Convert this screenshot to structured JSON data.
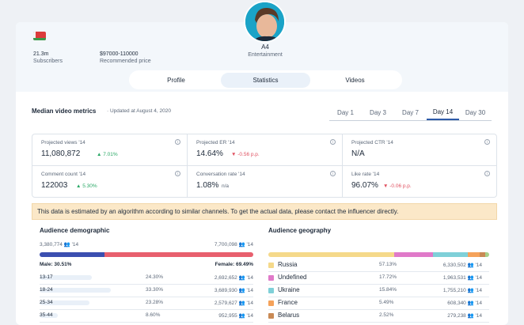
{
  "profile": {
    "subscribers_value": "21.3m",
    "subscribers_label": "Subscribers",
    "price_value": "$97000-110000",
    "price_label": "Recommended price",
    "name": "A4",
    "category": "Entertainment",
    "flag_icon": "belarus-flag-icon"
  },
  "tabs": [
    {
      "label": "Profile",
      "active": false
    },
    {
      "label": "Statistics",
      "active": true
    },
    {
      "label": "Videos",
      "active": false
    }
  ],
  "metrics": {
    "title": "Median video metrics",
    "updated": "Updated at August 4, 2020",
    "days": [
      "Day 1",
      "Day 3",
      "Day 7",
      "Day 14",
      "Day 30"
    ],
    "active_day": "Day 14",
    "cells": [
      {
        "label": "Projected views '14",
        "value": "11,080,872",
        "change": "7.01%",
        "dir": "up"
      },
      {
        "label": "Projected ER '14",
        "value": "14.64%",
        "change": "-0.56 p.p.",
        "dir": "down"
      },
      {
        "label": "Projected CTR '14",
        "value": "N/A",
        "change": "",
        "dir": "none"
      },
      {
        "label": "Comment count '14",
        "value": "122003",
        "change": "5.30%",
        "dir": "up"
      },
      {
        "label": "Conversation rate '14",
        "value": "1.08%",
        "change": "n/a",
        "dir": "none"
      },
      {
        "label": "Like rate '14",
        "value": "96.07%",
        "change": "-0.06 p.p.",
        "dir": "down"
      }
    ]
  },
  "notice": "This data is estimated by an algorithm according to similar channels. To get the actual data, please contact the influencer directly.",
  "demographic": {
    "title": "Audience demographic",
    "male_count": "3,380,774",
    "female_count": "7,700,098",
    "suffix": "'14",
    "male_label": "Male: 30.51%",
    "female_label": "Female: 69.49%",
    "male_share": 0.3051,
    "colors": {
      "male": "#3b4fb0",
      "female": "#e8606e"
    },
    "ages": [
      {
        "range": "13-17",
        "pct": "24.30%",
        "count": "2,692,652",
        "share": 0.243
      },
      {
        "range": "18-24",
        "pct": "33.30%",
        "count": "3,689,930",
        "share": 0.333
      },
      {
        "range": "25-34",
        "pct": "23.28%",
        "count": "2,579,627",
        "share": 0.2328
      },
      {
        "range": "35-44",
        "pct": "8.60%",
        "count": "952,955",
        "share": 0.086
      }
    ]
  },
  "geography": {
    "title": "Audience geography",
    "suffix": "'14",
    "countries": [
      {
        "name": "Russia",
        "pct": "57.13%",
        "count": "6,330,502",
        "share": 0.5713,
        "color": "#f5d98a"
      },
      {
        "name": "Undefined",
        "pct": "17.72%",
        "count": "1,963,531",
        "share": 0.1772,
        "color": "#e07ac9"
      },
      {
        "name": "Ukraine",
        "pct": "15.84%",
        "count": "1,755,210",
        "share": 0.1584,
        "color": "#7fd0d8"
      },
      {
        "name": "France",
        "pct": "5.49%",
        "count": "608,340",
        "share": 0.0549,
        "color": "#f5a25a"
      },
      {
        "name": "Belarus",
        "pct": "2.52%",
        "count": "279,238",
        "share": 0.0252,
        "color": "#c98a55"
      }
    ],
    "rest_color": "#a8d08a"
  }
}
